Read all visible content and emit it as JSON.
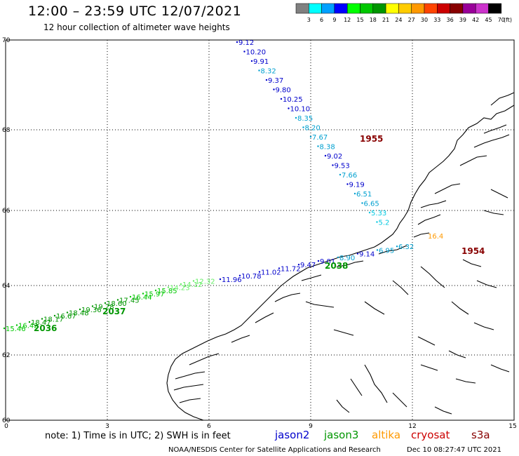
{
  "header": {
    "title": "12:00  –  23:59  UTC  12/07/2021",
    "subtitle": "12 hour collection of altimeter wave heights"
  },
  "colorbar": {
    "unit": "(ft)",
    "labels": [
      "3",
      "6",
      "9",
      "12",
      "15",
      "18",
      "21",
      "24",
      "27",
      "30",
      "33",
      "36",
      "39",
      "42",
      "45",
      "70"
    ],
    "colors": [
      "#808080",
      "#00ffff",
      "#00a0ff",
      "#0000ff",
      "#00ff00",
      "#00c800",
      "#009600",
      "#ffff00",
      "#ffcc00",
      "#ff9900",
      "#ff4400",
      "#cc0000",
      "#880000",
      "#990099",
      "#cc33cc",
      "#000000"
    ]
  },
  "axes": {
    "lat_ticks": [
      "70",
      "68",
      "66",
      "64",
      "62",
      "60"
    ],
    "lon_ticks": [
      "0",
      "3",
      "6",
      "9",
      "12",
      "15"
    ]
  },
  "tracks": [
    {
      "series": "upper",
      "labels": [
        {
          "v": "9.12",
          "c": "#0000cc"
        },
        {
          "v": "10.20",
          "c": "#0000cc"
        },
        {
          "v": "9.91",
          "c": "#0000cc"
        },
        {
          "v": "8.32",
          "c": "#00a0d0"
        },
        {
          "v": "9.37",
          "c": "#0000cc"
        },
        {
          "v": "9.80",
          "c": "#0000cc"
        },
        {
          "v": "10.25",
          "c": "#0000cc"
        },
        {
          "v": "10.10",
          "c": "#0000cc"
        },
        {
          "v": "8.35",
          "c": "#00a0d0"
        },
        {
          "v": "8.20",
          "c": "#00a0d0"
        },
        {
          "v": "7.67",
          "c": "#00a0d0"
        },
        {
          "v": "8.38",
          "c": "#00a0d0"
        },
        {
          "v": "9.02",
          "c": "#0000cc"
        },
        {
          "v": "9.53",
          "c": "#0000cc"
        },
        {
          "v": "7.66",
          "c": "#00a0d0"
        },
        {
          "v": "9.19",
          "c": "#0000cc"
        },
        {
          "v": "6.51",
          "c": "#00a0d0"
        },
        {
          "v": "6.65",
          "c": "#00a0d0"
        },
        {
          "v": "5.33",
          "c": "#00c8e0"
        },
        {
          "v": "5.2",
          "c": "#00c8e0"
        }
      ]
    },
    {
      "series": "middle",
      "labels": [
        {
          "v": "11.96",
          "c": "#0000cc"
        },
        {
          "v": "10.78",
          "c": "#0000cc"
        },
        {
          "v": "11.02",
          "c": "#0000cc"
        },
        {
          "v": "11.72",
          "c": "#0000cc"
        },
        {
          "v": "9.47",
          "c": "#0000cc"
        },
        {
          "v": "9.01",
          "c": "#0000cc"
        },
        {
          "v": "8.90",
          "c": "#00a0d0"
        },
        {
          "v": "9.14",
          "c": "#0000cc"
        },
        {
          "v": "6.95",
          "c": "#00a0d0"
        },
        {
          "v": "6.32",
          "c": "#00a0d0"
        }
      ]
    },
    {
      "series": "lower",
      "labels": [
        {
          "v": "15.46",
          "c": "#00c800"
        },
        {
          "v": "16.42",
          "c": "#00c800"
        },
        {
          "v": "18.47",
          "c": "#009600"
        },
        {
          "v": "18.17",
          "c": "#009600"
        },
        {
          "v": "16.67",
          "c": "#009600"
        },
        {
          "v": "18.48",
          "c": "#009600"
        },
        {
          "v": "19.36",
          "c": "#009600"
        },
        {
          "v": "19.28",
          "c": "#009600"
        },
        {
          "v": "18.60",
          "c": "#009600"
        },
        {
          "v": "17.45",
          "c": "#009600"
        },
        {
          "v": "16.44",
          "c": "#00c800"
        },
        {
          "v": "15.97",
          "c": "#00c800"
        },
        {
          "v": "15.85",
          "c": "#00c800"
        },
        {
          "v": "14.23",
          "c": "#66ee66"
        },
        {
          "v": "14.12",
          "c": "#66ee66"
        },
        {
          "v": "12.32",
          "c": "#66ee66"
        }
      ]
    }
  ],
  "times": [
    {
      "v": "1955",
      "c": "#880000"
    },
    {
      "v": "1954",
      "c": "#880000"
    },
    {
      "v": "2038",
      "c": "#009600"
    },
    {
      "v": "2037",
      "c": "#009600"
    },
    {
      "v": "2036",
      "c": "#009600"
    }
  ],
  "orange_mark": {
    "v": "16.4",
    "c": "#ff9900"
  },
  "footer": {
    "note": "note:  1) Time is in UTC; 2) SWH is in feet",
    "credit": "NOAA/NESDIS Center for Satellite Applications and Research",
    "timestamp": "Dec 10 08:27:47 UTC 2021",
    "legend": [
      {
        "name": "jason2",
        "color": "#0000cc"
      },
      {
        "name": "jason3",
        "color": "#009600"
      },
      {
        "name": "altika",
        "color": "#ff9900"
      },
      {
        "name": "cryosat",
        "color": "#cc0000"
      },
      {
        "name": "s3a",
        "color": "#880000"
      }
    ]
  }
}
